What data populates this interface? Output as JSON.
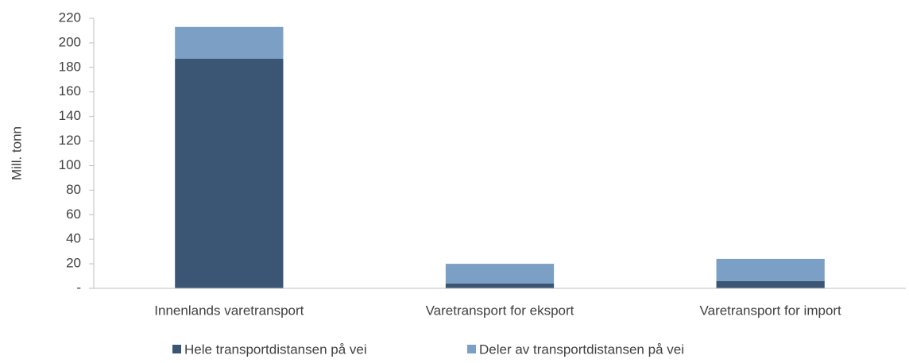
{
  "chart_data": {
    "type": "stacked_bar",
    "y_axis_label": "Mill. tonn",
    "categories": [
      "Innenlands varetransport",
      "Varetransport for eksport",
      "Varetransport for import"
    ],
    "series": [
      {
        "name": "Hele transportdistansen på vei",
        "color": "#3b5675",
        "values": [
          187,
          4,
          6
        ]
      },
      {
        "name": "Deler av transportdistansen på vei",
        "color": "#7c9fc5",
        "values": [
          26,
          16,
          18
        ]
      }
    ],
    "ylim": [
      0,
      220
    ],
    "yticks": [
      {
        "value": 0,
        "label": "-"
      },
      20,
      40,
      60,
      80,
      100,
      120,
      140,
      160,
      180,
      200,
      220
    ],
    "legend": "bottom"
  }
}
